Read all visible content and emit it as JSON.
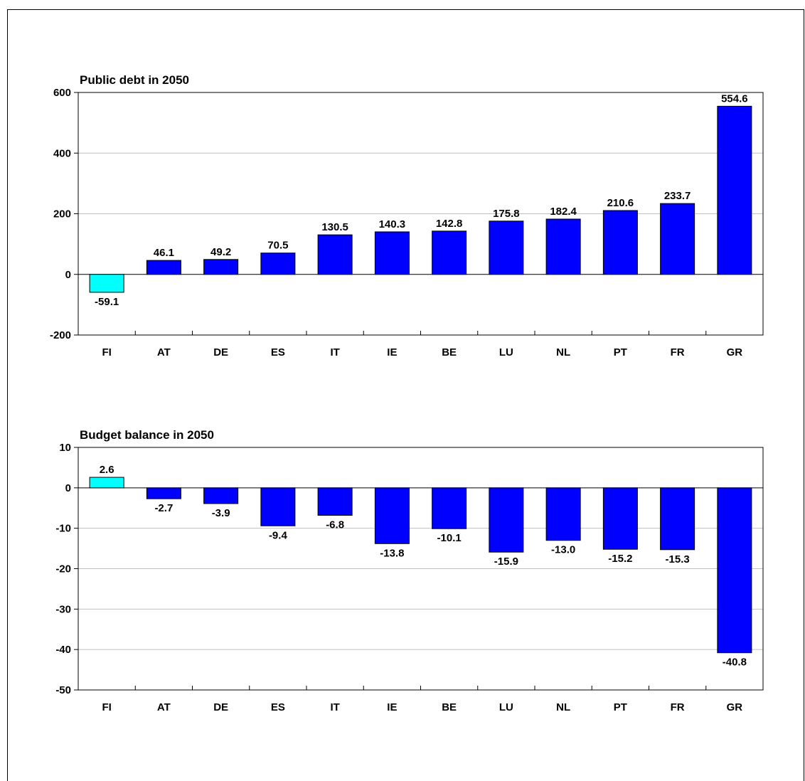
{
  "chart_data": [
    {
      "type": "bar",
      "title": "Public debt in 2050",
      "categories": [
        "FI",
        "AT",
        "DE",
        "ES",
        "IT",
        "IE",
        "BE",
        "LU",
        "NL",
        "PT",
        "FR",
        "GR"
      ],
      "values": [
        -59.1,
        46.1,
        49.2,
        70.5,
        130.5,
        140.3,
        142.8,
        175.8,
        182.4,
        210.6,
        233.7,
        554.6
      ],
      "labels": [
        "-59.1",
        "46.1",
        "49.2",
        "70.5",
        "130.5",
        "140.3",
        "142.8",
        "175.8",
        "182.4",
        "210.6",
        "233.7",
        "554.6"
      ],
      "ylim": [
        -200,
        600
      ],
      "yticks": [
        -200,
        0,
        200,
        400,
        600
      ],
      "grid": true,
      "highlight_category": "FI",
      "colors": {
        "bar": "#0000ff",
        "highlight": "#00ffff",
        "grid": "#c0c0c0"
      }
    },
    {
      "type": "bar",
      "title": "Budget balance in 2050",
      "categories": [
        "FI",
        "AT",
        "DE",
        "ES",
        "IT",
        "IE",
        "BE",
        "LU",
        "NL",
        "PT",
        "FR",
        "GR"
      ],
      "values": [
        2.6,
        -2.7,
        -3.9,
        -9.4,
        -6.8,
        -13.8,
        -10.1,
        -15.9,
        -13.0,
        -15.2,
        -15.3,
        -40.8
      ],
      "labels": [
        "2.6",
        "-2.7",
        "-3.9",
        "-9.4",
        "-6.8",
        "-13.8",
        "-10.1",
        "-15.9",
        "-13.0",
        "-15.2",
        "-15.3",
        "-40.8"
      ],
      "ylim": [
        -50,
        10
      ],
      "yticks": [
        -50,
        -40,
        -30,
        -20,
        -10,
        0,
        10
      ],
      "grid": true,
      "highlight_category": "FI",
      "colors": {
        "bar": "#0000ff",
        "highlight": "#00ffff",
        "grid": "#c0c0c0"
      }
    }
  ]
}
